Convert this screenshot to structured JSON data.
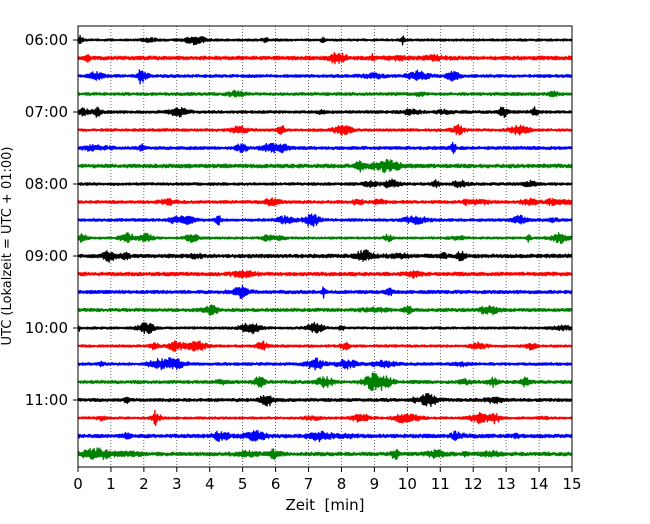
{
  "chart_data": {
    "type": "line",
    "title": "",
    "xlabel": "Zeit  [min]",
    "ylabel": "UTC (Lokalzeit = UTC + 01:00)",
    "xlim": [
      0,
      15
    ],
    "x_ticks": [
      "0",
      "1",
      "2",
      "3",
      "4",
      "5",
      "6",
      "7",
      "8",
      "9",
      "10",
      "11",
      "12",
      "13",
      "14",
      "15"
    ],
    "y_tick_labels": [
      "06:00",
      "07:00",
      "08:00",
      "09:00",
      "10:00",
      "11:00"
    ],
    "grid": {
      "vertical_dotted": true,
      "horizontal": false
    },
    "row_interval_minutes": 15,
    "series_colors_cycle": [
      "#000000",
      "#ff0000",
      "#0000ff",
      "#008000"
    ],
    "rows": [
      "06:00",
      "06:15",
      "06:30",
      "06:45",
      "07:00",
      "07:15",
      "07:30",
      "07:45",
      "08:00",
      "08:15",
      "08:30",
      "08:45",
      "09:00",
      "09:15",
      "09:30",
      "09:45",
      "10:00",
      "10:15",
      "10:30",
      "10:45",
      "11:00",
      "11:15",
      "11:30",
      "11:45"
    ]
  }
}
